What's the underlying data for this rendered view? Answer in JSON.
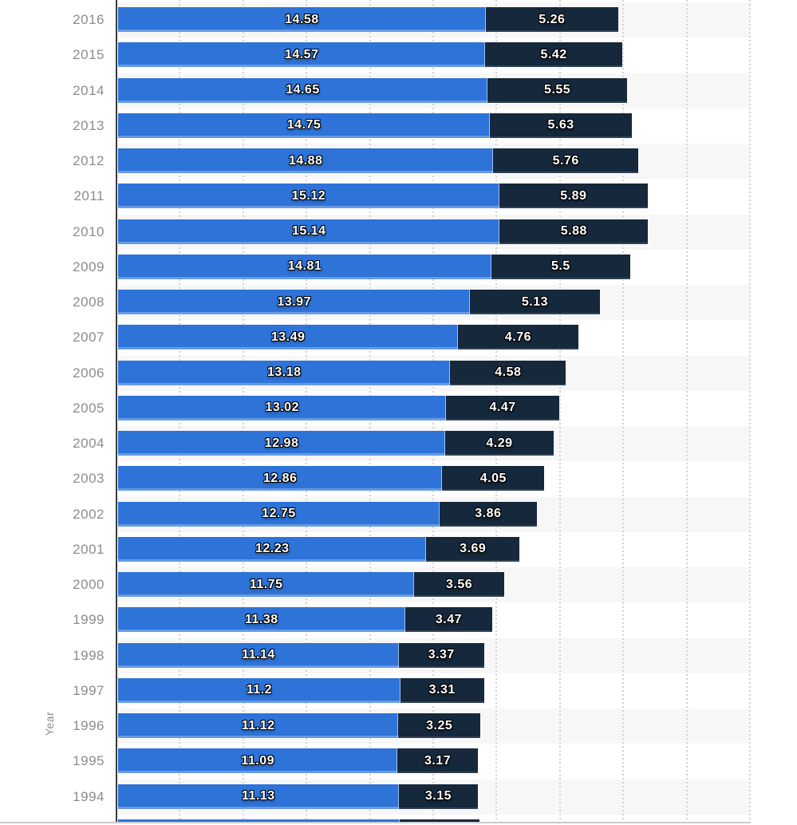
{
  "chart_data": {
    "type": "bar",
    "orientation": "horizontal",
    "stacked": true,
    "title": "",
    "xlabel": "",
    "ylabel": "Year",
    "categories": [
      "2016",
      "2015",
      "2014",
      "2013",
      "2012",
      "2011",
      "2010",
      "2009",
      "2008",
      "2007",
      "2006",
      "2005",
      "2004",
      "2003",
      "2002",
      "2001",
      "2000",
      "1999",
      "1998",
      "1997",
      "1996",
      "1995",
      "1994"
    ],
    "series": [
      {
        "name": "segment-primary-blue",
        "color": "#2d73d8",
        "values": [
          "14.58",
          "14.57",
          "14.65",
          "14.75",
          "14.88",
          "15.12",
          "15.14",
          "14.81",
          "13.97",
          "13.49",
          "13.18",
          "13.02",
          "12.98",
          "12.86",
          "12.75",
          "12.23",
          "11.75",
          "11.38",
          "11.14",
          "11.2",
          "11.12",
          "11.09",
          "11.13"
        ]
      },
      {
        "name": "segment-secondary-navy",
        "color": "#16283c",
        "values": [
          "5.26",
          "5.42",
          "5.55",
          "5.63",
          "5.76",
          "5.89",
          "5.88",
          "5.5",
          "5.13",
          "4.76",
          "4.58",
          "4.47",
          "4.29",
          "4.05",
          "3.86",
          "3.69",
          "3.56",
          "3.47",
          "3.37",
          "3.31",
          "3.25",
          "3.17",
          "3.15"
        ]
      }
    ],
    "clipped_partial_row": {
      "note": "bottom row cut off by viewport; labels not visible; widths estimated from pixels",
      "estimated_values": [
        11.17,
        3.16
      ],
      "labels_visible": false
    },
    "layout_hints": {
      "value_labels": "white bold, black outline, centered inside each segment",
      "gridlines": "vertical dotted, every ~2.5 units",
      "row_bands": "alternating light gray starting at top row",
      "legend_visible": false,
      "x_axis_ticks_visible": false
    },
    "colors": {
      "bar_primary": "#2d73d8",
      "bar_secondary": "#16283c",
      "row_band": "#f7f7f7",
      "gridline": "#d2d2d2",
      "axis_line": "#3a3a3a",
      "tick_label": "#8c8c8c",
      "value_text": "#ffffff",
      "bottom_edge": "#cbcbcb"
    }
  }
}
